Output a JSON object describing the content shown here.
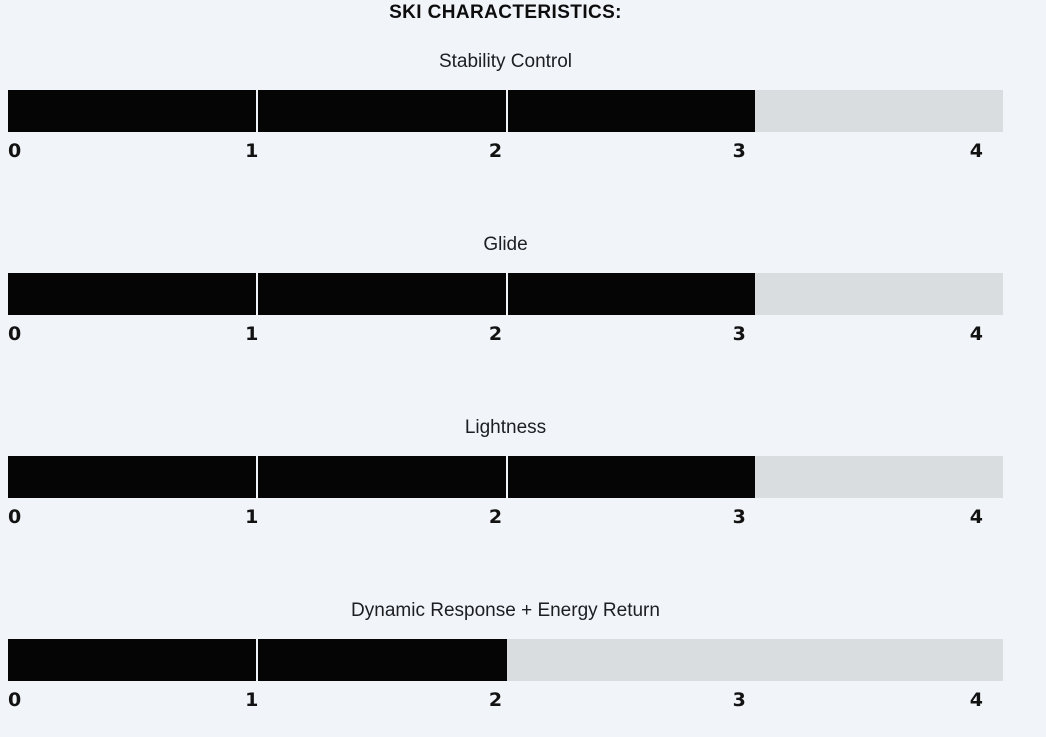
{
  "title": "SKI CHARACTERISTICS:",
  "chart_data": {
    "type": "bar",
    "subtype": "horizontal-rating-gauges",
    "title": "SKI CHARACTERISTICS:",
    "scale_min": 0,
    "scale_max": 4,
    "tick_labels": [
      "0",
      "1",
      "2",
      "3",
      "4"
    ],
    "metrics": [
      {
        "label": "Stability Control",
        "value": 3
      },
      {
        "label": "Glide",
        "value": 3
      },
      {
        "label": "Lightness",
        "value": 3
      },
      {
        "label": "Dynamic Response + Energy Return",
        "value": 2
      }
    ],
    "legend": "none",
    "grid": false
  },
  "colors": {
    "page_background": "#f1f4f8",
    "bar_filled": "#050505",
    "bar_unfilled": "#dadde0",
    "segment_divider": "#f1f4f8",
    "title_text": "#0d0d0d",
    "label_text": "#1c1e21",
    "tick_text": "#121212"
  }
}
